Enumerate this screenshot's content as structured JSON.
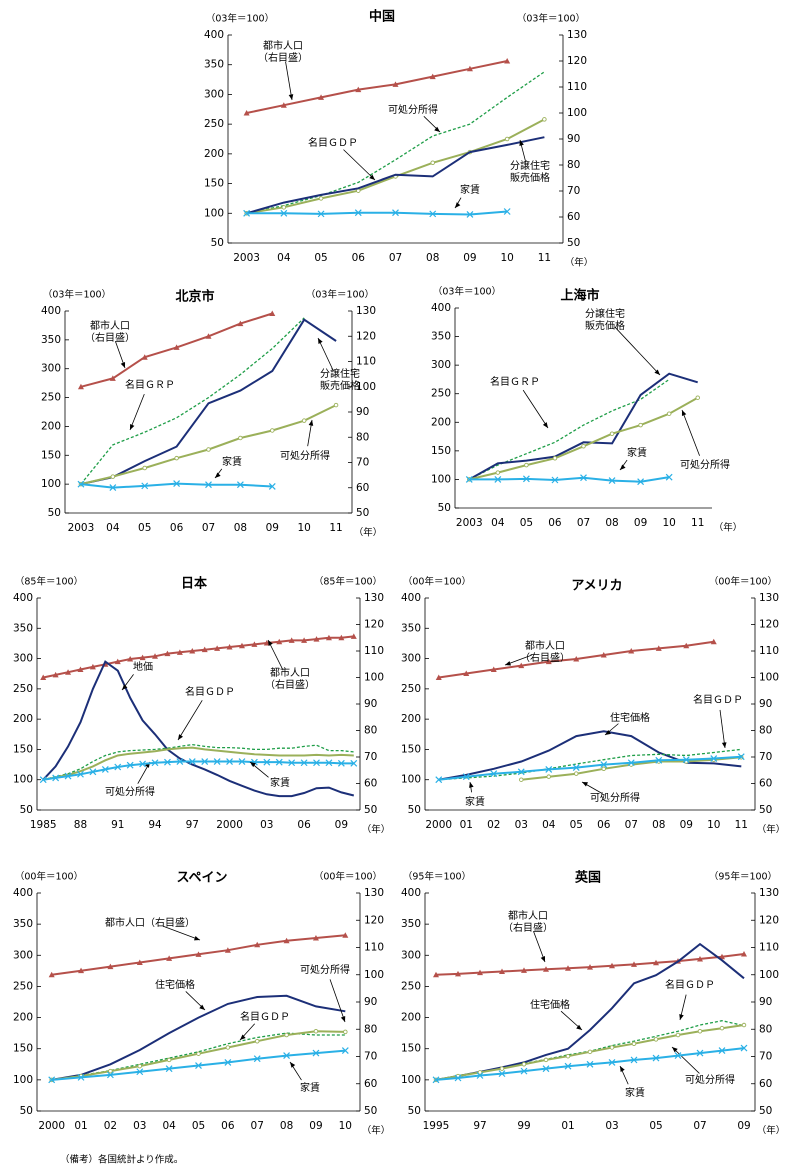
{
  "chart_data": [
    {
      "type": "line",
      "title": "中国",
      "y_unit": "（03年＝100）",
      "y2_unit": "（03年＝100）",
      "x_unit": "（年）",
      "categories": [
        "2003",
        "04",
        "05",
        "06",
        "07",
        "08",
        "09",
        "10",
        "11"
      ],
      "ylim": [
        50,
        400
      ],
      "yticks": [
        50,
        100,
        150,
        200,
        250,
        300,
        350,
        400
      ],
      "y2lim": [
        50,
        130
      ],
      "y2ticks": [
        50,
        60,
        70,
        80,
        90,
        100,
        110,
        120,
        130
      ],
      "series": [
        {
          "name": "都市人口\n（右目盛）",
          "color": "#b5504a",
          "axis": "y2",
          "marker": "triangle",
          "values": [
            100,
            103,
            106,
            109,
            111,
            114,
            117,
            120,
            null
          ]
        },
        {
          "name": "可処分所得",
          "color": "#1f9e48",
          "dashed": true,
          "values": [
            100,
            113,
            130,
            152,
            190,
            230,
            250,
            295,
            338
          ]
        },
        {
          "name": "名目ＧＤＰ",
          "color": "#9bb05a",
          "marker": "circle",
          "values": [
            100,
            110,
            125,
            138,
            162,
            185,
            203,
            225,
            258
          ]
        },
        {
          "name": "分譲住宅\n販売価格",
          "color": "#1c2f78",
          "values": [
            100,
            118,
            131,
            142,
            165,
            162,
            203,
            215,
            228
          ]
        },
        {
          "name": "家賃",
          "color": "#2ab0e6",
          "marker": "x",
          "values": [
            100,
            100,
            99,
            101,
            101,
            99,
            98,
            103,
            null
          ]
        }
      ]
    },
    {
      "type": "line",
      "title": "北京市",
      "y_unit": "（03年＝100）",
      "y2_unit": "（03年＝100）",
      "x_unit": "（年）",
      "categories": [
        "2003",
        "04",
        "05",
        "06",
        "07",
        "08",
        "09",
        "10",
        "11"
      ],
      "ylim": [
        50,
        400
      ],
      "yticks": [
        50,
        100,
        150,
        200,
        250,
        300,
        350,
        400
      ],
      "y2lim": [
        50,
        130
      ],
      "y2ticks": [
        50,
        60,
        70,
        80,
        90,
        100,
        110,
        120,
        130
      ],
      "series": [
        {
          "name": "都市人口\n（右目盛）",
          "color": "#b5504a",
          "axis": "y2",
          "marker": "triangle",
          "values": [
            100,
            103.3,
            111.7,
            115.6,
            120,
            125,
            129,
            null,
            null
          ]
        },
        {
          "name": "名目ＧＲＰ",
          "color": "#1f9e48",
          "dashed": true,
          "values": [
            100,
            168,
            190,
            215,
            250,
            290,
            335,
            388,
            null
          ]
        },
        {
          "name": "分譲住宅\n販売価格",
          "color": "#1c2f78",
          "values": [
            100,
            112,
            140,
            165,
            240,
            262,
            296,
            385,
            348
          ]
        },
        {
          "name": "可処分所得",
          "color": "#9bb05a",
          "marker": "circle",
          "values": [
            100,
            113,
            128,
            145,
            160,
            180,
            193,
            210,
            237
          ]
        },
        {
          "name": "家賃",
          "color": "#2ab0e6",
          "marker": "x",
          "values": [
            100,
            94,
            97,
            101,
            99,
            99,
            96,
            null,
            null
          ]
        }
      ]
    },
    {
      "type": "line",
      "title": "上海市",
      "y_unit": "（03年＝100）",
      "x_unit": "（年）",
      "categories": [
        "2003",
        "04",
        "05",
        "06",
        "07",
        "08",
        "09",
        "10",
        "11"
      ],
      "ylim": [
        50,
        400
      ],
      "yticks": [
        50,
        100,
        150,
        200,
        250,
        300,
        350,
        400
      ],
      "series": [
        {
          "name": "名目ＧＲＰ",
          "color": "#1f9e48",
          "dashed": true,
          "values": [
            100,
            125,
            145,
            165,
            195,
            220,
            240,
            275,
            null
          ]
        },
        {
          "name": "分譲住宅\n販売価格",
          "color": "#1c2f78",
          "values": [
            100,
            128,
            133,
            140,
            165,
            163,
            248,
            285,
            270
          ]
        },
        {
          "name": "可処分所得",
          "color": "#9bb05a",
          "marker": "circle",
          "values": [
            100,
            112,
            125,
            137,
            158,
            180,
            195,
            215,
            243
          ]
        },
        {
          "name": "家賃",
          "color": "#2ab0e6",
          "marker": "x",
          "values": [
            100,
            100,
            101,
            99,
            103,
            98,
            96,
            104,
            null
          ]
        }
      ]
    },
    {
      "type": "line",
      "title": "日本",
      "y_unit": "（85年＝100）",
      "y2_unit": "（85年＝100）",
      "x_unit": "（年）",
      "categories": [
        "1985",
        null,
        null,
        "88",
        null,
        null,
        "91",
        null,
        null,
        "94",
        null,
        null,
        "97",
        null,
        null,
        "2000",
        null,
        null,
        "03",
        null,
        null,
        "06",
        null,
        null,
        "09",
        null
      ],
      "ylim": [
        50,
        400
      ],
      "yticks": [
        50,
        100,
        150,
        200,
        250,
        300,
        350,
        400
      ],
      "y2lim": [
        50,
        130
      ],
      "y2ticks": [
        50,
        60,
        70,
        80,
        90,
        100,
        110,
        120,
        130
      ],
      "series": [
        {
          "name": "都市人口\n（右目盛）",
          "color": "#b5504a",
          "axis": "y2",
          "marker": "triangle",
          "values": [
            100,
            101,
            102,
            103,
            104,
            105,
            106,
            107,
            107.5,
            108,
            109,
            109.5,
            110,
            110.5,
            111,
            111.5,
            112,
            112.5,
            113,
            113.5,
            114,
            114,
            114.5,
            115,
            115,
            115.5
          ]
        },
        {
          "name": "地価",
          "color": "#1c2f78",
          "values": [
            100,
            122,
            155,
            195,
            250,
            295,
            280,
            235,
            198,
            175,
            150,
            135,
            125,
            117,
            108,
            98,
            90,
            82,
            76,
            73,
            73,
            78,
            86,
            87,
            79,
            74
          ]
        },
        {
          "name": "名目ＧＤＰ",
          "color": "#1f9e48",
          "dashed": true,
          "values": [
            100,
            105,
            110,
            118,
            130,
            140,
            146,
            148,
            149,
            150,
            152,
            155,
            158,
            155,
            153,
            153,
            152,
            150,
            150,
            152,
            152,
            155,
            157,
            148,
            148,
            146
          ]
        },
        {
          "name": "可処分所得",
          "color": "#9bb05a",
          "values": [
            100,
            104,
            108,
            114,
            122,
            132,
            140,
            143,
            145,
            147,
            150,
            152,
            153,
            150,
            148,
            146,
            144,
            142,
            141,
            140,
            140,
            140,
            141,
            140,
            141,
            140
          ]
        },
        {
          "name": "家賃",
          "color": "#2ab0e6",
          "marker": "x",
          "values": [
            100,
            103,
            106,
            109,
            113,
            117,
            121,
            124,
            126,
            128,
            129,
            130,
            130,
            130,
            130,
            130,
            130,
            129,
            129,
            129,
            128,
            128,
            128,
            128,
            127,
            127
          ]
        }
      ]
    },
    {
      "type": "line",
      "title": "アメリカ",
      "y_unit": "（00年＝100）",
      "y2_unit": "（00年＝100）",
      "x_unit": "（年）",
      "categories": [
        "2000",
        "01",
        "02",
        "03",
        "04",
        "05",
        "06",
        "07",
        "08",
        "09",
        "10",
        "11"
      ],
      "ylim": [
        50,
        400
      ],
      "yticks": [
        50,
        100,
        150,
        200,
        250,
        300,
        350,
        400
      ],
      "y2lim": [
        50,
        130
      ],
      "y2ticks": [
        50,
        60,
        70,
        80,
        90,
        100,
        110,
        120,
        130
      ],
      "series": [
        {
          "name": "都市人口\n（右目盛）",
          "color": "#b5504a",
          "axis": "y2",
          "marker": "triangle",
          "values": [
            100,
            101.5,
            103,
            104.5,
            106,
            107,
            108.5,
            110,
            111,
            112,
            113.5,
            null
          ]
        },
        {
          "name": "住宅価格",
          "color": "#1c2f78",
          "values": [
            100,
            108,
            118,
            130,
            148,
            172,
            180,
            172,
            145,
            128,
            127,
            122
          ]
        },
        {
          "name": "名目ＧＤＰ",
          "color": "#1f9e48",
          "dashed": true,
          "values": [
            100,
            103,
            106,
            111,
            118,
            126,
            133,
            140,
            142,
            140,
            145,
            150
          ]
        },
        {
          "name": "可処分所得",
          "color": "#9bb05a",
          "marker": "circle",
          "values": [
            null,
            null,
            null,
            100,
            105,
            110,
            118,
            125,
            130,
            130,
            133,
            137
          ]
        },
        {
          "name": "家賃",
          "color": "#2ab0e6",
          "marker": "x",
          "values": [
            100,
            105,
            110,
            113,
            117,
            120,
            125,
            128,
            132,
            133,
            135,
            138
          ]
        }
      ]
    },
    {
      "type": "line",
      "title": "スペイン",
      "y_unit": "（00年＝100）",
      "y2_unit": "（00年＝100）",
      "x_unit": "（年）",
      "categories": [
        "2000",
        "01",
        "02",
        "03",
        "04",
        "05",
        "06",
        "07",
        "08",
        "09",
        "10"
      ],
      "ylim": [
        50,
        400
      ],
      "yticks": [
        50,
        100,
        150,
        200,
        250,
        300,
        350,
        400
      ],
      "y2lim": [
        50,
        130
      ],
      "y2ticks": [
        50,
        60,
        70,
        80,
        90,
        100,
        110,
        120,
        130
      ],
      "series": [
        {
          "name": "都市人口（右目盛）",
          "color": "#b5504a",
          "axis": "y2",
          "marker": "triangle",
          "values": [
            100,
            101.5,
            103,
            104.5,
            106,
            107.5,
            109,
            111,
            112.5,
            113.5,
            114.5
          ]
        },
        {
          "name": "住宅価格",
          "color": "#1c2f78",
          "values": [
            100,
            108,
            125,
            148,
            175,
            200,
            222,
            233,
            235,
            218,
            210
          ]
        },
        {
          "name": "名目ＧＤＰ",
          "color": "#1f9e48",
          "dashed": true,
          "values": [
            100,
            107,
            115,
            125,
            135,
            145,
            158,
            168,
            175,
            172,
            172
          ]
        },
        {
          "name": "可処分所得",
          "color": "#9bb05a",
          "marker": "circle",
          "values": [
            100,
            106,
            114,
            122,
            132,
            142,
            152,
            162,
            172,
            178,
            177
          ]
        },
        {
          "name": "家賃",
          "color": "#2ab0e6",
          "marker": "x",
          "values": [
            100,
            104,
            108,
            113,
            118,
            123,
            128,
            134,
            139,
            143,
            147
          ]
        }
      ]
    },
    {
      "type": "line",
      "title": "英国",
      "y_unit": "（95年＝100）",
      "y2_unit": "（95年＝100）",
      "x_unit": "（年）",
      "categories": [
        "1995",
        null,
        "97",
        null,
        "99",
        null,
        "01",
        null,
        "03",
        null,
        "05",
        null,
        "07",
        null,
        "09"
      ],
      "ylim": [
        50,
        400
      ],
      "yticks": [
        50,
        100,
        150,
        200,
        250,
        300,
        350,
        400
      ],
      "y2lim": [
        50,
        130
      ],
      "y2ticks": [
        50,
        60,
        70,
        80,
        90,
        100,
        110,
        120,
        130
      ],
      "series": [
        {
          "name": "都市人口\n（右目盛）",
          "color": "#b5504a",
          "axis": "y2",
          "marker": "triangle",
          "values": [
            100,
            100.3,
            100.8,
            101.2,
            101.6,
            102,
            102.4,
            102.8,
            103.3,
            103.8,
            104.4,
            105,
            105.8,
            106.6,
            107.6
          ]
        },
        {
          "name": "住宅価格",
          "color": "#1c2f78",
          "values": [
            100,
            106,
            113,
            120,
            128,
            140,
            150,
            180,
            215,
            255,
            268,
            290,
            318,
            292,
            263
          ]
        },
        {
          "name": "名目ＧＤＰ",
          "color": "#1f9e48",
          "dashed": true,
          "values": [
            100,
            107,
            112,
            118,
            126,
            133,
            140,
            146,
            155,
            162,
            170,
            178,
            188,
            195,
            187
          ]
        },
        {
          "name": "可処分所得",
          "color": "#9bb05a",
          "marker": "circle",
          "values": [
            100,
            106,
            112,
            118,
            125,
            132,
            138,
            145,
            152,
            158,
            165,
            172,
            178,
            183,
            188
          ]
        },
        {
          "name": "家賃",
          "color": "#2ab0e6",
          "marker": "x",
          "values": [
            100,
            103,
            107,
            110,
            114,
            118,
            122,
            125,
            128,
            132,
            135,
            139,
            143,
            147,
            151
          ]
        }
      ]
    }
  ],
  "note": "（備考）各国統計より作成。"
}
